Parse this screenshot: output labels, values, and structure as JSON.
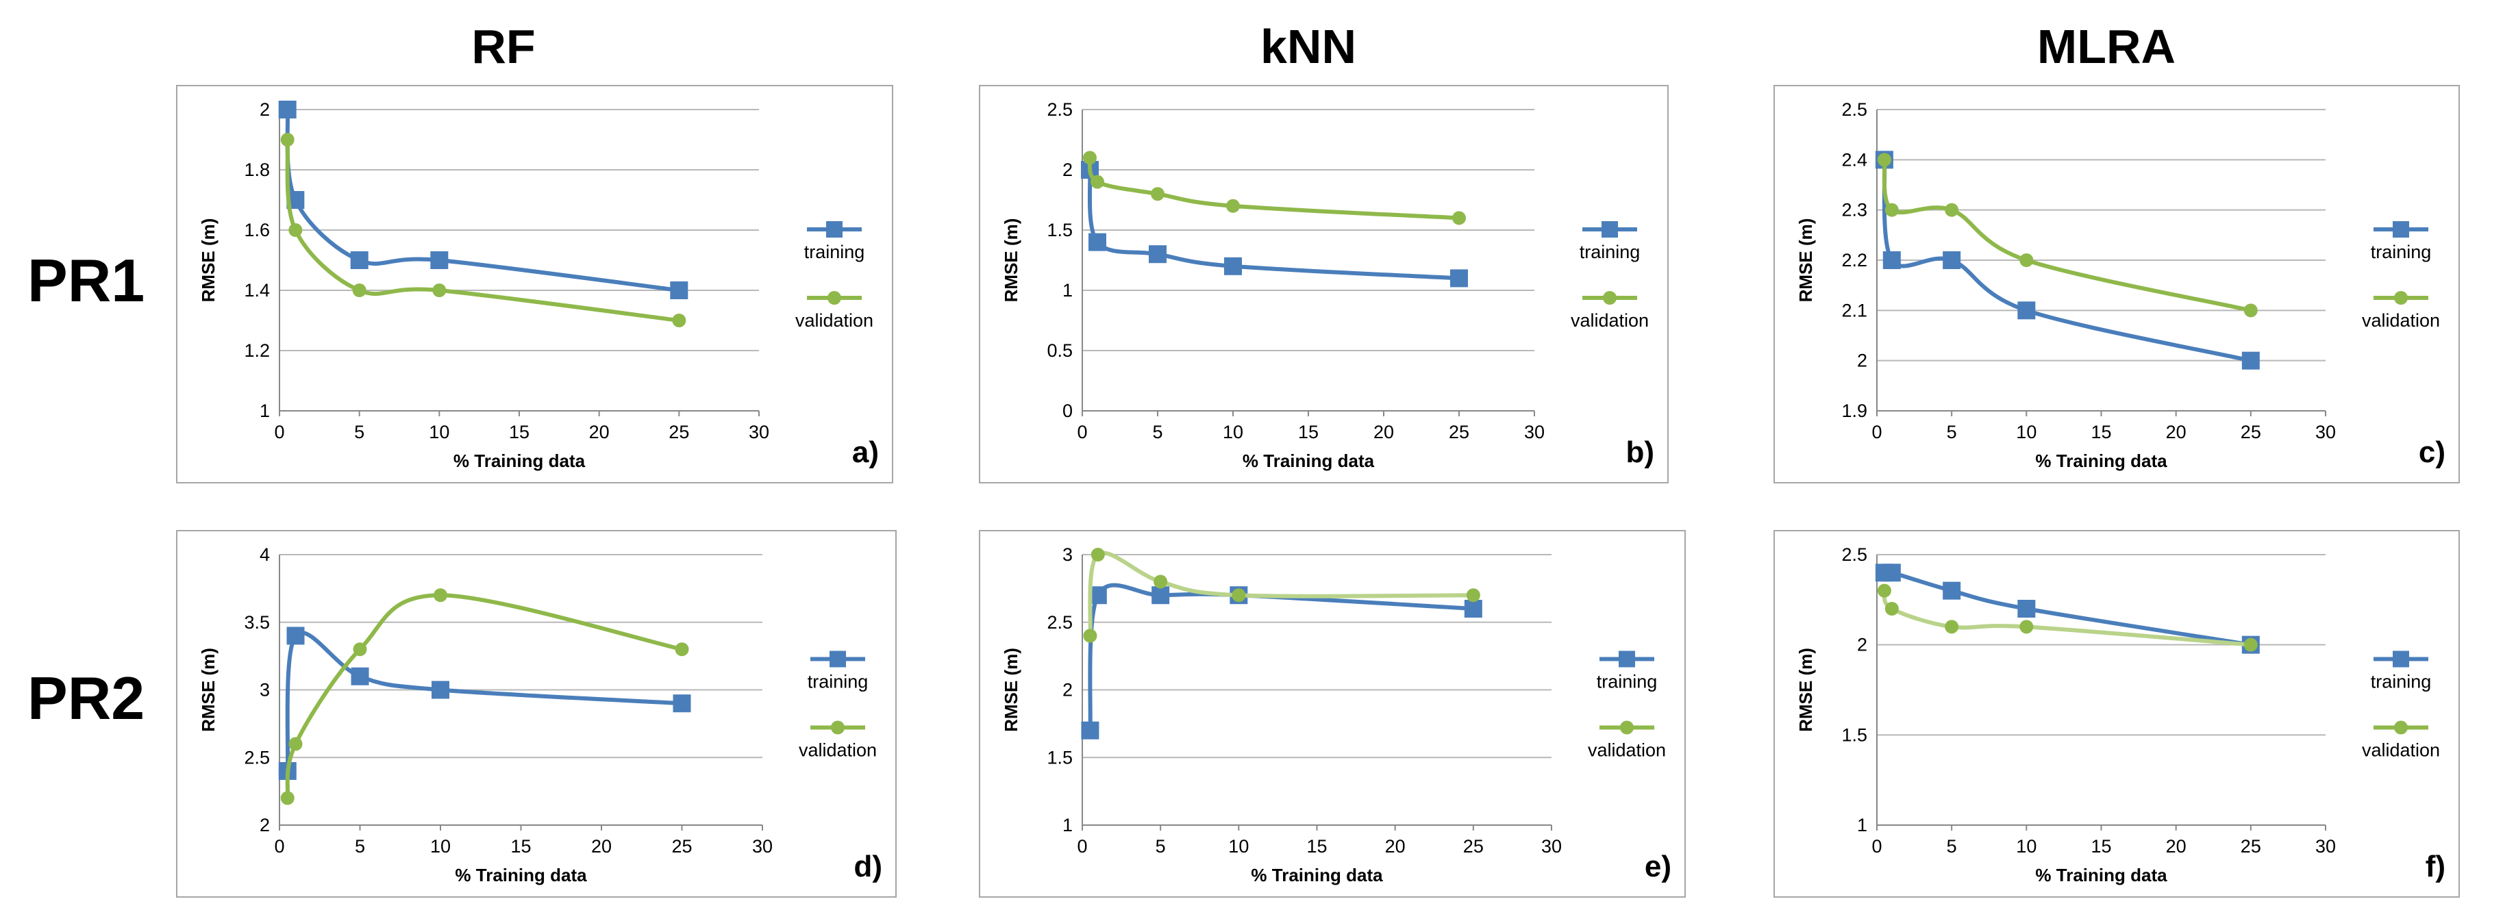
{
  "figure": {
    "column_headers": [
      "RF",
      "kNN",
      "MLRA"
    ],
    "row_headers": [
      "PR1",
      "PR2"
    ]
  },
  "colors": {
    "training": "#4a7ebb",
    "validation": "#8fb84a",
    "validation_light": "#b9d38a",
    "grid": "#b8b8b8",
    "axis": "#888888",
    "frame": "#a6a6a6"
  },
  "chart_data": [
    {
      "panel": "a)",
      "type": "line",
      "xlabel": "% Training data",
      "ylabel": "RMSE (m)",
      "xlim": [
        0,
        30
      ],
      "ylim": [
        1,
        2
      ],
      "yticks": [
        1,
        1.2,
        1.4,
        1.6,
        1.8,
        2
      ],
      "xticks": [
        0,
        5,
        10,
        15,
        20,
        25,
        30
      ],
      "grid": true,
      "legend": "right",
      "series": [
        {
          "name": "training",
          "marker": "square",
          "x": [
            0.5,
            1,
            5,
            10,
            25
          ],
          "y": [
            2.0,
            1.7,
            1.5,
            1.5,
            1.4
          ]
        },
        {
          "name": "validation",
          "marker": "circle",
          "x": [
            0.5,
            1,
            5,
            10,
            25
          ],
          "y": [
            1.9,
            1.6,
            1.4,
            1.4,
            1.3
          ]
        }
      ]
    },
    {
      "panel": "b)",
      "type": "line",
      "xlabel": "% Training data",
      "ylabel": "RMSE (m)",
      "xlim": [
        0,
        30
      ],
      "ylim": [
        0,
        2.5
      ],
      "yticks": [
        0,
        0.5,
        1,
        1.5,
        2,
        2.5
      ],
      "xticks": [
        0,
        5,
        10,
        15,
        20,
        25,
        30
      ],
      "grid": true,
      "legend": "right",
      "series": [
        {
          "name": "training",
          "marker": "square",
          "x": [
            0.5,
            1,
            5,
            10,
            25
          ],
          "y": [
            2.0,
            1.4,
            1.3,
            1.2,
            1.1
          ]
        },
        {
          "name": "validation",
          "marker": "circle",
          "x": [
            0.5,
            1,
            5,
            10,
            25
          ],
          "y": [
            2.1,
            1.9,
            1.8,
            1.7,
            1.6
          ]
        }
      ]
    },
    {
      "panel": "c)",
      "type": "line",
      "xlabel": "% Training data",
      "ylabel": "RMSE (m)",
      "xlim": [
        0,
        30
      ],
      "ylim": [
        1.9,
        2.5
      ],
      "yticks": [
        1.9,
        2,
        2.1,
        2.2,
        2.3,
        2.4,
        2.5
      ],
      "xticks": [
        0,
        5,
        10,
        15,
        20,
        25,
        30
      ],
      "grid": true,
      "legend": "right",
      "series": [
        {
          "name": "training",
          "marker": "square",
          "x": [
            0.5,
            1,
            5,
            10,
            25
          ],
          "y": [
            2.4,
            2.2,
            2.2,
            2.1,
            2.0
          ]
        },
        {
          "name": "validation",
          "marker": "circle",
          "x": [
            0.5,
            1,
            5,
            10,
            25
          ],
          "y": [
            2.4,
            2.3,
            2.3,
            2.2,
            2.1
          ]
        }
      ]
    },
    {
      "panel": "d)",
      "type": "line",
      "xlabel": "% Training data",
      "ylabel": "RMSE (m)",
      "xlim": [
        0,
        30
      ],
      "ylim": [
        2,
        4
      ],
      "yticks": [
        2,
        2.5,
        3,
        3.5,
        4
      ],
      "xticks": [
        0,
        5,
        10,
        15,
        20,
        25,
        30
      ],
      "grid": true,
      "legend": "right",
      "series": [
        {
          "name": "training",
          "marker": "square",
          "x": [
            0.5,
            1,
            5,
            10,
            25
          ],
          "y": [
            2.4,
            3.4,
            3.1,
            3.0,
            2.9
          ]
        },
        {
          "name": "validation",
          "marker": "circle",
          "x": [
            0.5,
            1,
            5,
            10,
            25
          ],
          "y": [
            2.2,
            2.6,
            3.3,
            3.7,
            3.3
          ]
        }
      ]
    },
    {
      "panel": "e)",
      "type": "line",
      "xlabel": "% Training data",
      "ylabel": "RMSE (m)",
      "xlim": [
        0,
        30
      ],
      "ylim": [
        1,
        3
      ],
      "yticks": [
        1,
        1.5,
        2,
        2.5,
        3
      ],
      "xticks": [
        0,
        5,
        10,
        15,
        20,
        25,
        30
      ],
      "grid": true,
      "legend": "right",
      "series": [
        {
          "name": "training",
          "marker": "square",
          "x": [
            0.5,
            1,
            5,
            10,
            25
          ],
          "y": [
            1.7,
            2.7,
            2.7,
            2.7,
            2.6
          ]
        },
        {
          "name": "validation",
          "marker": "circle",
          "light": true,
          "x": [
            0.5,
            1,
            5,
            10,
            25
          ],
          "y": [
            2.4,
            3.0,
            2.8,
            2.7,
            2.7
          ]
        }
      ]
    },
    {
      "panel": "f)",
      "type": "line",
      "xlabel": "% Training data",
      "ylabel": "RMSE (m)",
      "xlim": [
        0,
        30
      ],
      "ylim": [
        1,
        2.5
      ],
      "yticks": [
        1,
        1.5,
        2,
        2.5
      ],
      "xticks": [
        0,
        5,
        10,
        15,
        20,
        25,
        30
      ],
      "grid": true,
      "legend": "right",
      "series": [
        {
          "name": "training",
          "marker": "square",
          "x": [
            0.5,
            1,
            5,
            10,
            25
          ],
          "y": [
            2.4,
            2.4,
            2.3,
            2.2,
            2.0
          ]
        },
        {
          "name": "validation",
          "marker": "circle",
          "light": true,
          "x": [
            0.5,
            1,
            5,
            10,
            25
          ],
          "y": [
            2.3,
            2.2,
            2.1,
            2.1,
            2.0
          ]
        }
      ]
    }
  ]
}
